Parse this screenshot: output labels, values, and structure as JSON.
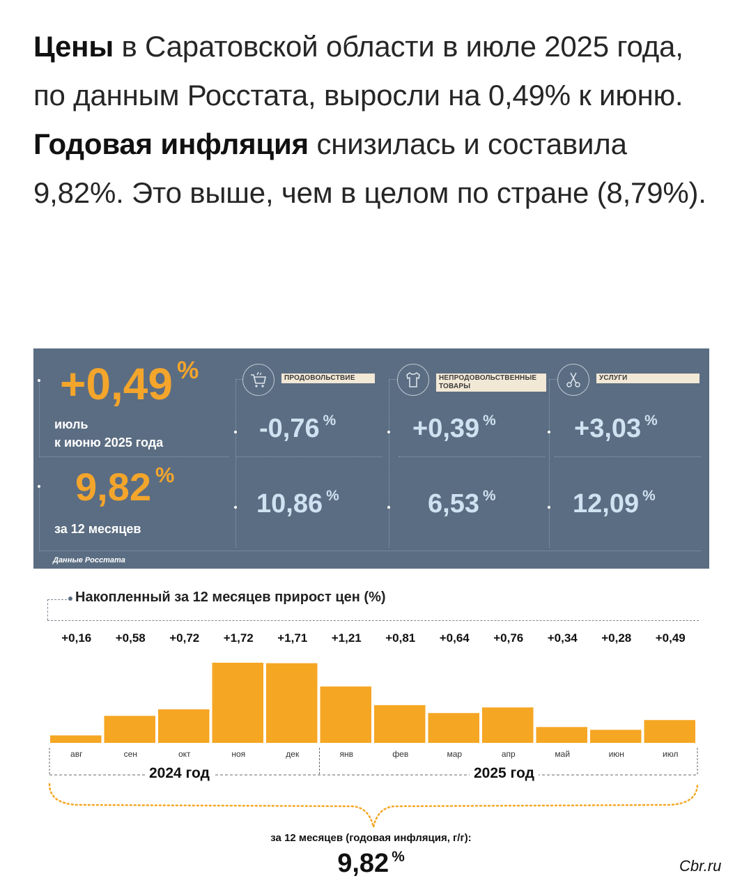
{
  "headline": {
    "bold1": "Цены",
    "text1": " в Саратовской области в июле 2025 года, по данным Росстата, выросли на 0,49% к июню. ",
    "bold2": "Годовая инфляция",
    "text2": " снизилась и составила 9,82%. Это выше, чем в целом по стране (8,79%)."
  },
  "panel": {
    "monthly": {
      "value": "+0,49",
      "unit": "%",
      "label_line1": "июль",
      "label_line2": "к июню 2025 года"
    },
    "annual": {
      "value": "9,82",
      "unit": "%",
      "label": "за 12 месяцев"
    },
    "categories": [
      {
        "name": "ПРОДОВОЛЬСТВИЕ",
        "icon": "shopping-basket-icon",
        "monthly": "-0,76",
        "annual": "10,86"
      },
      {
        "name": "НЕПРОДОВОЛЬСТВЕННЫЕ ТОВАРЫ",
        "icon": "clothes-icon",
        "monthly": "+0,39",
        "annual": "6,53"
      },
      {
        "name": "УСЛУГИ",
        "icon": "scissors-icon",
        "monthly": "+3,03",
        "annual": "12,09"
      }
    ],
    "unit": "%",
    "source": "Данные Росстата"
  },
  "chart_title": "Накопленный за 12 месяцев прирост цен (%)",
  "chart_data": {
    "type": "bar",
    "categories": [
      "авг",
      "сен",
      "окт",
      "ноя",
      "дек",
      "янв",
      "фев",
      "мар",
      "апр",
      "май",
      "июн",
      "июл"
    ],
    "values": [
      0.16,
      0.58,
      0.72,
      1.72,
      1.71,
      1.21,
      0.81,
      0.64,
      0.76,
      0.34,
      0.28,
      0.49
    ],
    "data_labels": [
      "+0,16",
      "+0,58",
      "+0,72",
      "+1,72",
      "+1,71",
      "+1,21",
      "+0,81",
      "+0,64",
      "+0,76",
      "+0,34",
      "+0,28",
      "+0,49"
    ],
    "title": "Накопленный за 12 месяцев прирост цен (%)",
    "groups": [
      {
        "label": "2024 год",
        "months": 5
      },
      {
        "label": "2025 год",
        "months": 7
      }
    ],
    "bar_color": "#f5a623",
    "ylim": [
      0,
      1.8
    ]
  },
  "footer": {
    "label": "за 12 месяцев (годовая инфляция, г/г):",
    "value": "9,82",
    "unit": "%"
  },
  "watermark": "Cbr.ru"
}
